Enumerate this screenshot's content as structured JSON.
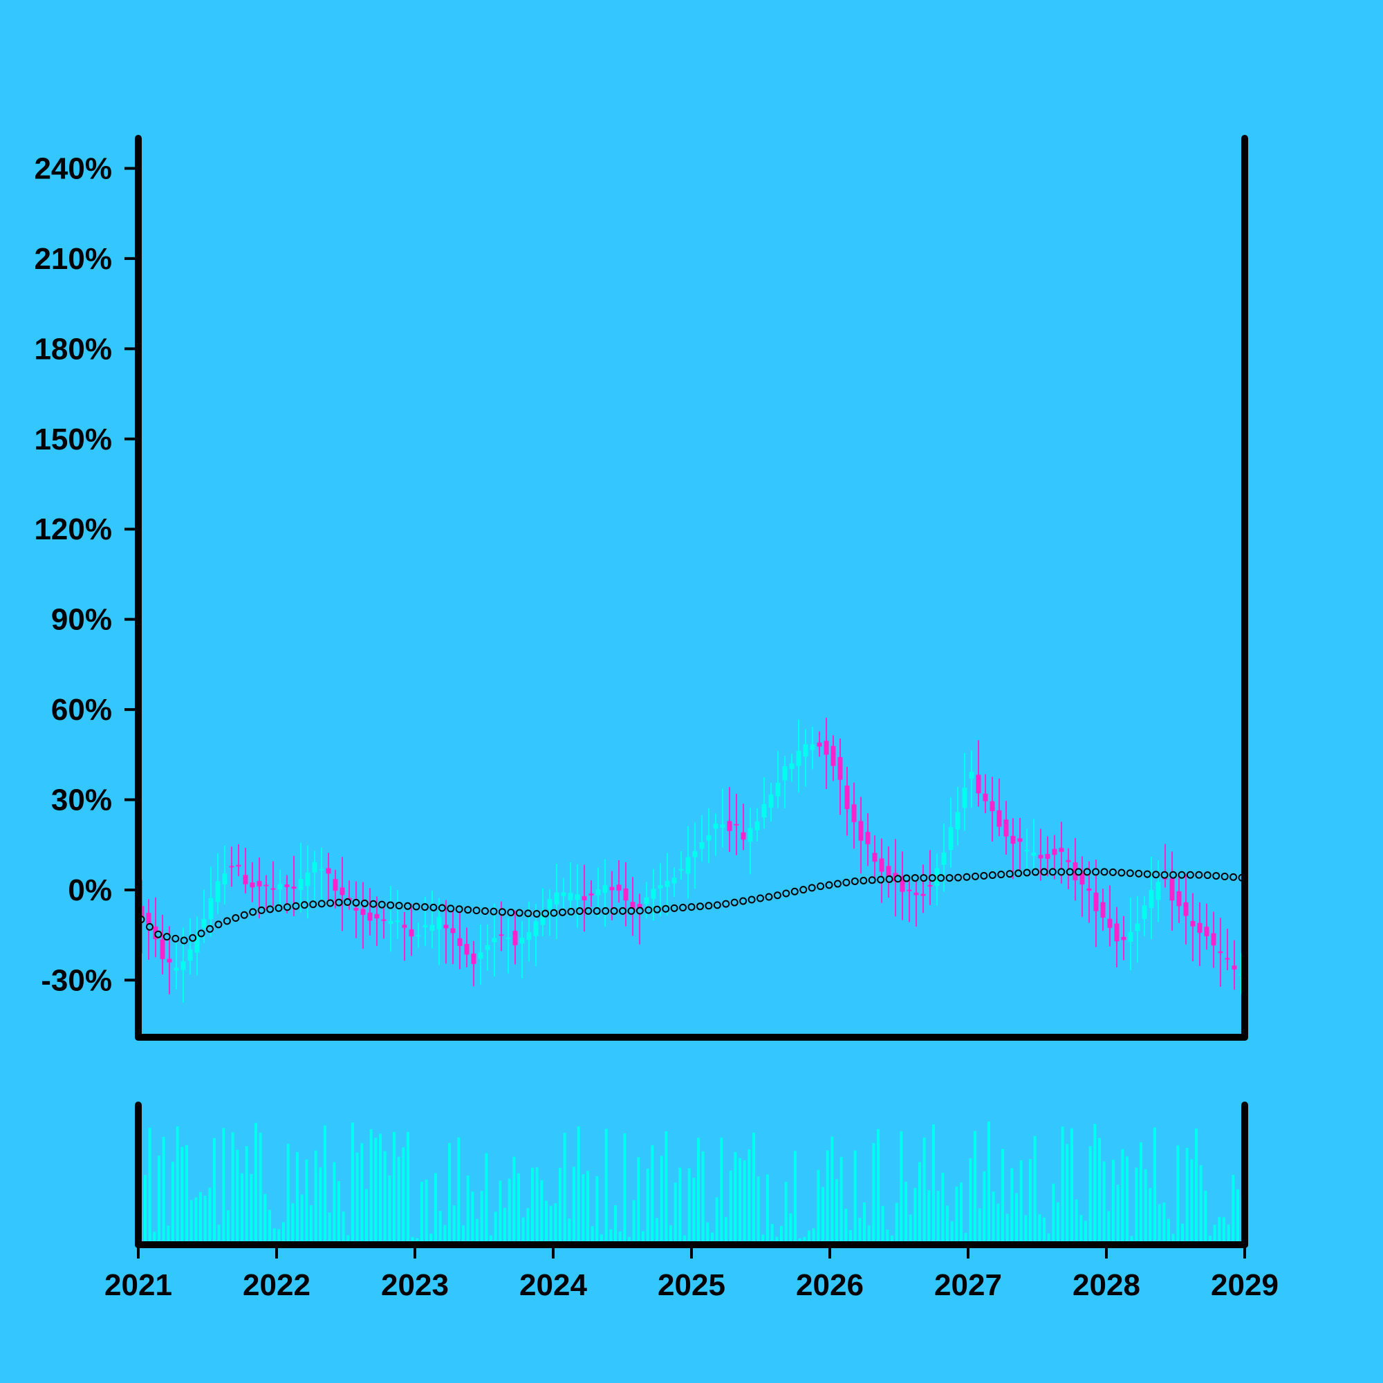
{
  "colors": {
    "background": "#33c6ff",
    "up": "#00ffee",
    "down": "#ff22cc",
    "volume": "#00ffee",
    "trend_fill": "#33c6ff",
    "trend_stroke": "#000000",
    "axis": "#000000"
  },
  "chart_data": {
    "type": "candlestick",
    "title": "",
    "xlabel": "",
    "ylabel": "",
    "x_range": [
      2021,
      2029
    ],
    "ylim": [
      -49,
      250
    ],
    "y_ticks": [
      {
        "value": 240,
        "label": "240%"
      },
      {
        "value": 210,
        "label": "210%"
      },
      {
        "value": 180,
        "label": "180%"
      },
      {
        "value": 150,
        "label": "150%"
      },
      {
        "value": 120,
        "label": "120%"
      },
      {
        "value": 90,
        "label": "90%"
      },
      {
        "value": 60,
        "label": "60%"
      },
      {
        "value": 30,
        "label": "30%"
      },
      {
        "value": 0,
        "label": "0%"
      },
      {
        "value": -30,
        "label": "-30%"
      }
    ],
    "x_ticks": [
      {
        "value": 2021,
        "label": "2021"
      },
      {
        "value": 2022,
        "label": "2022"
      },
      {
        "value": 2023,
        "label": "2023"
      },
      {
        "value": 2024,
        "label": "2024"
      },
      {
        "value": 2025,
        "label": "2025"
      },
      {
        "value": 2026,
        "label": "2026"
      },
      {
        "value": 2027,
        "label": "2027"
      },
      {
        "value": 2028,
        "label": "2028"
      },
      {
        "value": 2029,
        "label": "2029"
      }
    ],
    "grid": false,
    "legend": "none",
    "price_path": [
      [
        2021.0,
        -6
      ],
      [
        2021.15,
        -20
      ],
      [
        2021.25,
        -27
      ],
      [
        2021.35,
        -22
      ],
      [
        2021.5,
        -7
      ],
      [
        2021.65,
        10
      ],
      [
        2021.8,
        2
      ],
      [
        2022.0,
        0
      ],
      [
        2022.15,
        1
      ],
      [
        2022.3,
        10
      ],
      [
        2022.45,
        -2
      ],
      [
        2022.6,
        -8
      ],
      [
        2022.8,
        -10
      ],
      [
        2023.0,
        -14
      ],
      [
        2023.2,
        -10
      ],
      [
        2023.4,
        -24
      ],
      [
        2023.6,
        -14
      ],
      [
        2023.8,
        -18
      ],
      [
        2024.0,
        -2
      ],
      [
        2024.2,
        -3
      ],
      [
        2024.4,
        3
      ],
      [
        2024.6,
        -7
      ],
      [
        2024.8,
        2
      ],
      [
        2025.0,
        10
      ],
      [
        2025.2,
        24
      ],
      [
        2025.4,
        17
      ],
      [
        2025.6,
        35
      ],
      [
        2025.85,
        50
      ],
      [
        2026.0,
        46
      ],
      [
        2026.15,
        25
      ],
      [
        2026.35,
        7
      ],
      [
        2026.55,
        0
      ],
      [
        2026.7,
        0
      ],
      [
        2026.85,
        15
      ],
      [
        2027.0,
        40
      ],
      [
        2027.15,
        28
      ],
      [
        2027.3,
        18
      ],
      [
        2027.45,
        11
      ],
      [
        2027.65,
        13
      ],
      [
        2027.8,
        3
      ],
      [
        2028.0,
        -10
      ],
      [
        2028.1,
        -18
      ],
      [
        2028.25,
        -8
      ],
      [
        2028.4,
        4
      ],
      [
        2028.55,
        -8
      ],
      [
        2028.7,
        -15
      ],
      [
        2028.85,
        -23
      ],
      [
        2028.95,
        -28
      ]
    ],
    "trend_path": [
      [
        2021.0,
        -9
      ],
      [
        2021.15,
        -15
      ],
      [
        2021.35,
        -17
      ],
      [
        2021.6,
        -11
      ],
      [
        2021.85,
        -7
      ],
      [
        2022.2,
        -5
      ],
      [
        2022.5,
        -4
      ],
      [
        2022.8,
        -5
      ],
      [
        2023.2,
        -6
      ],
      [
        2023.5,
        -7
      ],
      [
        2023.9,
        -8
      ],
      [
        2024.2,
        -7
      ],
      [
        2024.6,
        -7
      ],
      [
        2024.9,
        -6
      ],
      [
        2025.2,
        -5
      ],
      [
        2025.6,
        -2
      ],
      [
        2025.9,
        1
      ],
      [
        2026.2,
        3
      ],
      [
        2026.6,
        4
      ],
      [
        2026.9,
        4
      ],
      [
        2027.2,
        5
      ],
      [
        2027.5,
        6
      ],
      [
        2027.8,
        6
      ],
      [
        2028.0,
        6
      ],
      [
        2028.4,
        5
      ],
      [
        2028.7,
        5
      ],
      [
        2029.0,
        4
      ]
    ],
    "volume_scale": [
      0,
      100
    ]
  }
}
